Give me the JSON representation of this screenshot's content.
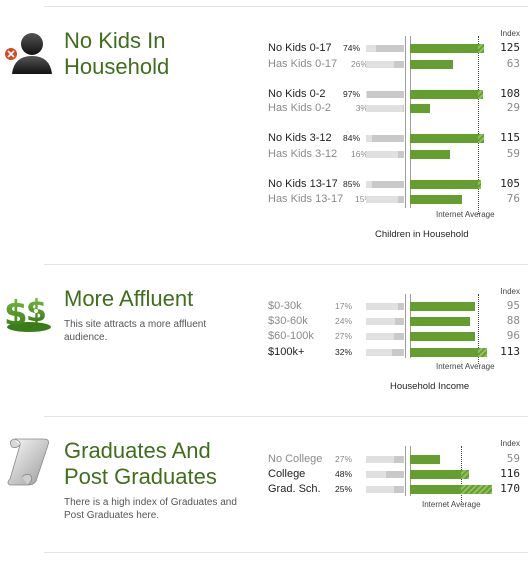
{
  "colors": {
    "accent_green": "#639e2f",
    "title_green": "#3f6e1c",
    "bar_gray": "#e0e0e0"
  },
  "sections": [
    {
      "title_line1": "No Kids In",
      "title_line2": "Household",
      "description": "",
      "icon": "no-kids-person-icon",
      "chart": {
        "index_header": "Index",
        "average_label": "Internet Average",
        "title": "Children in Household",
        "rows": [
          {
            "label": "No Kids 0-17",
            "pct": "74%",
            "index": "125",
            "pct_value": 0.74,
            "index_value": 125,
            "style": "primary"
          },
          {
            "label": "Has Kids 0-17",
            "pct": "26%",
            "index": "63",
            "pct_value": 0.26,
            "index_value": 63,
            "style": "secondary"
          },
          {
            "label": "No Kids 0-2",
            "pct": "97%",
            "index": "108",
            "pct_value": 0.97,
            "index_value": 108,
            "style": "primary"
          },
          {
            "label": "Has Kids 0-2",
            "pct": "3%",
            "index": "29",
            "pct_value": 0.03,
            "index_value": 29,
            "style": "secondary"
          },
          {
            "label": "No Kids 3-12",
            "pct": "84%",
            "index": "115",
            "pct_value": 0.84,
            "index_value": 115,
            "style": "primary"
          },
          {
            "label": "Has Kids 3-12",
            "pct": "16%",
            "index": "59",
            "pct_value": 0.16,
            "index_value": 59,
            "style": "secondary"
          },
          {
            "label": "No Kids 13-17",
            "pct": "85%",
            "index": "105",
            "pct_value": 0.85,
            "index_value": 105,
            "style": "primary"
          },
          {
            "label": "Has Kids 13-17",
            "pct": "15%",
            "index": "76",
            "pct_value": 0.15,
            "index_value": 76,
            "style": "secondary"
          }
        ]
      }
    },
    {
      "title_line1": "More Affluent",
      "title_line2": "",
      "description": "This site attracts a more affluent audience.",
      "icon": "money-dollar-icon",
      "chart": {
        "index_header": "Index",
        "average_label": "Internet Average",
        "title": "Household Income",
        "rows": [
          {
            "label": "$0-30k",
            "pct": "17%",
            "index": "95",
            "pct_value": 0.17,
            "index_value": 95,
            "style": "secondary"
          },
          {
            "label": "$30-60k",
            "pct": "24%",
            "index": "88",
            "pct_value": 0.24,
            "index_value": 88,
            "style": "secondary"
          },
          {
            "label": "$60-100k",
            "pct": "27%",
            "index": "96",
            "pct_value": 0.27,
            "index_value": 96,
            "style": "secondary"
          },
          {
            "label": "$100k+",
            "pct": "32%",
            "index": "113",
            "pct_value": 0.32,
            "index_value": 113,
            "style": "primary"
          }
        ]
      }
    },
    {
      "title_line1": "Graduates And",
      "title_line2": "Post Graduates",
      "description": "There is a high index of Graduates and Post Graduates here.",
      "icon": "diploma-scroll-icon",
      "chart": {
        "index_header": "Index",
        "average_label": "Internet Average",
        "title": "",
        "rows": [
          {
            "label": "No College",
            "pct": "27%",
            "index": "59",
            "pct_value": 0.27,
            "index_value": 59,
            "style": "secondary"
          },
          {
            "label": "College",
            "pct": "48%",
            "index": "116",
            "pct_value": 0.48,
            "index_value": 116,
            "style": "primary"
          },
          {
            "label": "Grad. Sch.",
            "pct": "25%",
            "index": "170",
            "pct_value": 0.25,
            "index_value": 170,
            "style": "primary"
          }
        ]
      }
    }
  ]
}
